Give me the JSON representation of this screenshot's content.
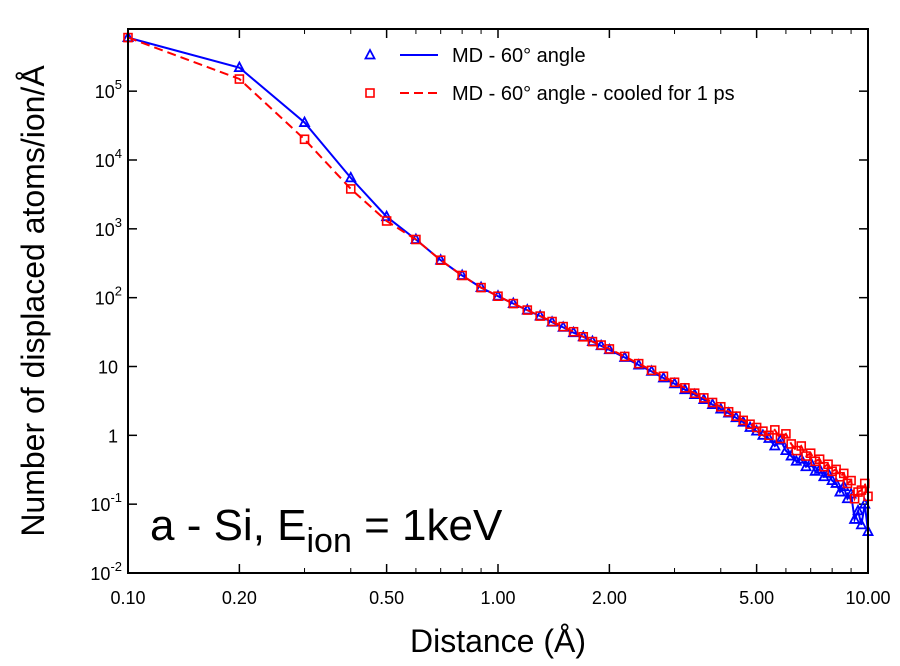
{
  "chart_data": {
    "type": "line",
    "xscale": "log",
    "yscale": "log",
    "xlim": [
      0.1,
      10
    ],
    "ylim": [
      0.01,
      800000
    ],
    "xticks": [
      {
        "value": 0.1,
        "label": "0.10"
      },
      {
        "value": 0.2,
        "label": "0.20"
      },
      {
        "value": 0.5,
        "label": "0.50"
      },
      {
        "value": 1,
        "label": "1.00"
      },
      {
        "value": 2,
        "label": "2.00"
      },
      {
        "value": 5,
        "label": "5.00"
      },
      {
        "value": 10,
        "label": "10.00"
      }
    ],
    "yticks": [
      {
        "value": 0.01,
        "base": "10",
        "exp": "-2"
      },
      {
        "value": 0.1,
        "base": "10",
        "exp": "-1"
      },
      {
        "value": 1,
        "base": "1",
        "exp": ""
      },
      {
        "value": 10,
        "base": "10",
        "exp": ""
      },
      {
        "value": 100,
        "base": "10",
        "exp": "2"
      },
      {
        "value": 1000,
        "base": "10",
        "exp": "3"
      },
      {
        "value": 10000,
        "base": "10",
        "exp": "4"
      },
      {
        "value": 100000,
        "base": "10",
        "exp": "5"
      }
    ],
    "xlabel": "Distance (Å)",
    "ylabel": "Number of displaced atoms/ion/Å",
    "annotation": {
      "main": "a - Si, E",
      "sub": "ion",
      "rest": " = 1keV"
    },
    "legend_position": "top-right",
    "grid": false,
    "series": [
      {
        "name": "MD - 60° angle",
        "color": "#0000ff",
        "line": "solid",
        "marker": "triangle",
        "x": [
          0.1,
          0.2,
          0.3,
          0.4,
          0.5,
          0.6,
          0.7,
          0.8,
          0.9,
          1.0,
          1.1,
          1.2,
          1.3,
          1.4,
          1.5,
          1.6,
          1.7,
          1.8,
          1.9,
          2.0,
          2.2,
          2.4,
          2.6,
          2.8,
          3.0,
          3.2,
          3.4,
          3.6,
          3.8,
          4.0,
          4.2,
          4.4,
          4.6,
          4.8,
          5.0,
          5.2,
          5.4,
          5.6,
          5.8,
          6.0,
          6.2,
          6.4,
          6.6,
          6.8,
          7.0,
          7.2,
          7.4,
          7.6,
          7.8,
          8.0,
          8.2,
          8.4,
          8.6,
          8.8,
          9.0,
          9.2,
          9.4,
          9.6,
          9.8,
          10.0
        ],
        "y": [
          600000,
          220000,
          35000,
          5500,
          1500,
          700,
          350,
          210,
          140,
          105,
          82,
          66,
          54,
          44,
          37,
          31,
          27,
          23,
          20,
          17.5,
          13.5,
          10.5,
          8.5,
          6.8,
          5.6,
          4.6,
          3.9,
          3.3,
          2.8,
          2.4,
          2.1,
          1.8,
          1.55,
          1.3,
          1.15,
          1.0,
          0.9,
          0.7,
          0.85,
          0.6,
          0.5,
          0.42,
          0.45,
          0.35,
          0.4,
          0.3,
          0.32,
          0.25,
          0.28,
          0.22,
          0.2,
          0.15,
          0.18,
          0.12,
          0.14,
          0.06,
          0.08,
          0.05,
          0.1,
          0.04
        ]
      },
      {
        "name": "MD - 60° angle - cooled for 1 ps",
        "color": "#ff0000",
        "line": "dashed",
        "marker": "square",
        "x": [
          0.1,
          0.2,
          0.3,
          0.4,
          0.5,
          0.6,
          0.7,
          0.8,
          0.9,
          1.0,
          1.1,
          1.2,
          1.3,
          1.4,
          1.5,
          1.6,
          1.7,
          1.8,
          1.9,
          2.0,
          2.2,
          2.4,
          2.6,
          2.8,
          3.0,
          3.2,
          3.4,
          3.6,
          3.8,
          4.0,
          4.2,
          4.4,
          4.6,
          4.8,
          5.0,
          5.2,
          5.4,
          5.6,
          5.8,
          6.0,
          6.2,
          6.4,
          6.6,
          6.8,
          7.0,
          7.2,
          7.4,
          7.6,
          7.8,
          8.0,
          8.2,
          8.4,
          8.6,
          8.8,
          9.0,
          9.2,
          9.4,
          9.6,
          9.8,
          10.0
        ],
        "y": [
          600000,
          150000,
          20000,
          3800,
          1300,
          700,
          350,
          210,
          140,
          105,
          82,
          66,
          54,
          45,
          38,
          32,
          27,
          23,
          20.5,
          18,
          14,
          11,
          8.8,
          7.2,
          5.9,
          4.9,
          4.1,
          3.5,
          3.0,
          2.6,
          2.2,
          1.9,
          1.65,
          1.45,
          1.3,
          1.15,
          1.0,
          1.2,
          0.9,
          1.05,
          0.75,
          0.6,
          0.7,
          0.5,
          0.55,
          0.42,
          0.45,
          0.35,
          0.38,
          0.3,
          0.32,
          0.25,
          0.28,
          0.2,
          0.22,
          0.12,
          0.15,
          0.16,
          0.2,
          0.13
        ]
      }
    ]
  }
}
